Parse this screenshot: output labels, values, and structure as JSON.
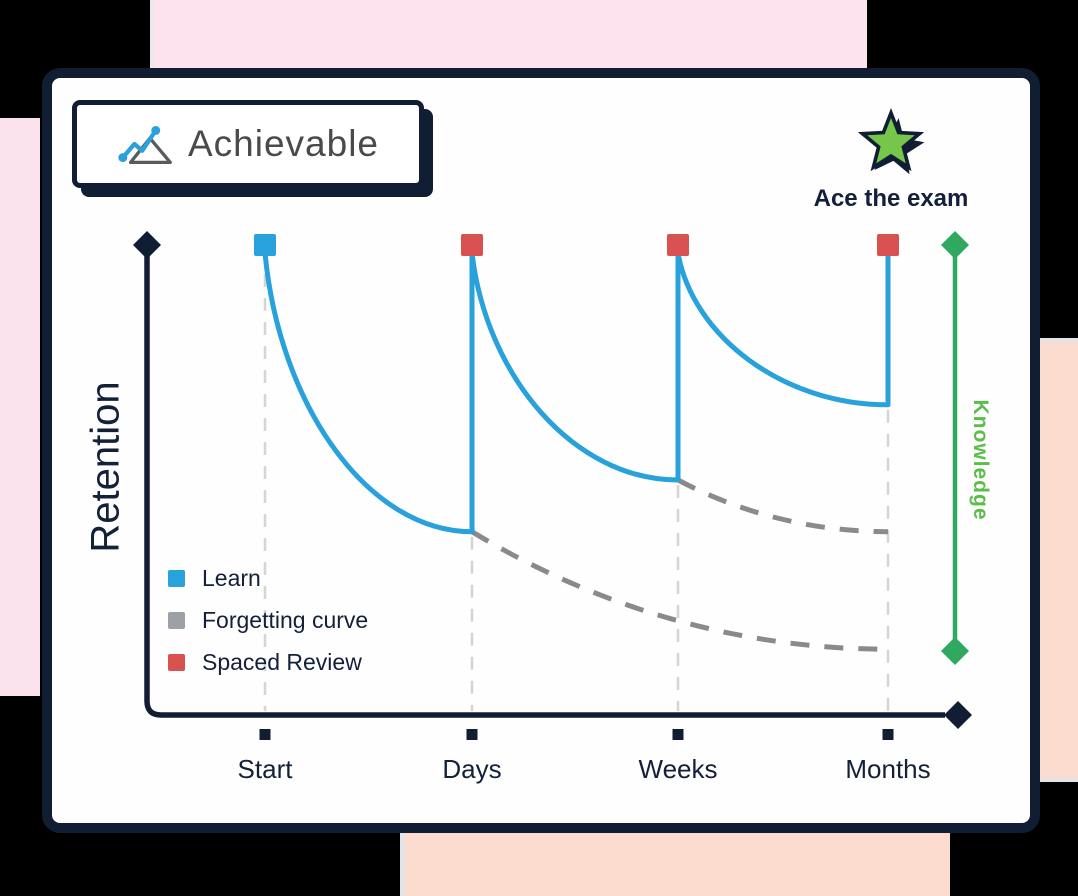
{
  "window": {
    "background": "#000000"
  },
  "decor": {
    "pink": "#FCE3ED",
    "peach": "#FBDCCE"
  },
  "logo": {
    "brand": "Achievable",
    "icon": "line-chart-icon"
  },
  "tagline": {
    "icon": "star-icon",
    "text": "Ace the exam"
  },
  "chart_data": {
    "type": "line",
    "x_categories": [
      "Start",
      "Days",
      "Weeks",
      "Months"
    ],
    "ylabel": "Retention",
    "right_label": "Knowledge",
    "ylim": [
      0,
      100
    ],
    "grid": false,
    "legend_position": "lower-left",
    "legend": [
      {
        "label": "Learn",
        "color": "#29A2DC"
      },
      {
        "label": "Forgetting curve",
        "color": "#9BA1A6"
      },
      {
        "label": "Spaced Review",
        "color": "#D95252"
      }
    ],
    "colors": {
      "learn": "#29A2DC",
      "forgetting": "#8A8A8A",
      "review": "#D95252",
      "knowledge_line": "#2FA95F",
      "knowledge_text": "#5BBE49",
      "axis": "#111D33",
      "guide": "#D5D5D5"
    },
    "learn_segments": [
      {
        "from": "Start",
        "from_value": 100,
        "to": "Days",
        "to_value": 39
      },
      {
        "from": "Days",
        "from_value": 100,
        "to": "Weeks",
        "to_value": 50
      },
      {
        "from": "Weeks",
        "from_value": 100,
        "to": "Months",
        "to_value": 66
      }
    ],
    "forgetting_segments": [
      {
        "from": "Days",
        "from_value": 39,
        "to": "Months",
        "to_value": 14
      },
      {
        "from": "Weeks",
        "from_value": 50,
        "to": "Months",
        "to_value": 39
      }
    ],
    "learn_marker": {
      "x": "Start",
      "value": 100
    },
    "review_markers": [
      {
        "x": "Days",
        "value": 100
      },
      {
        "x": "Weeks",
        "value": 100
      },
      {
        "x": "Months",
        "value": 100
      }
    ]
  }
}
